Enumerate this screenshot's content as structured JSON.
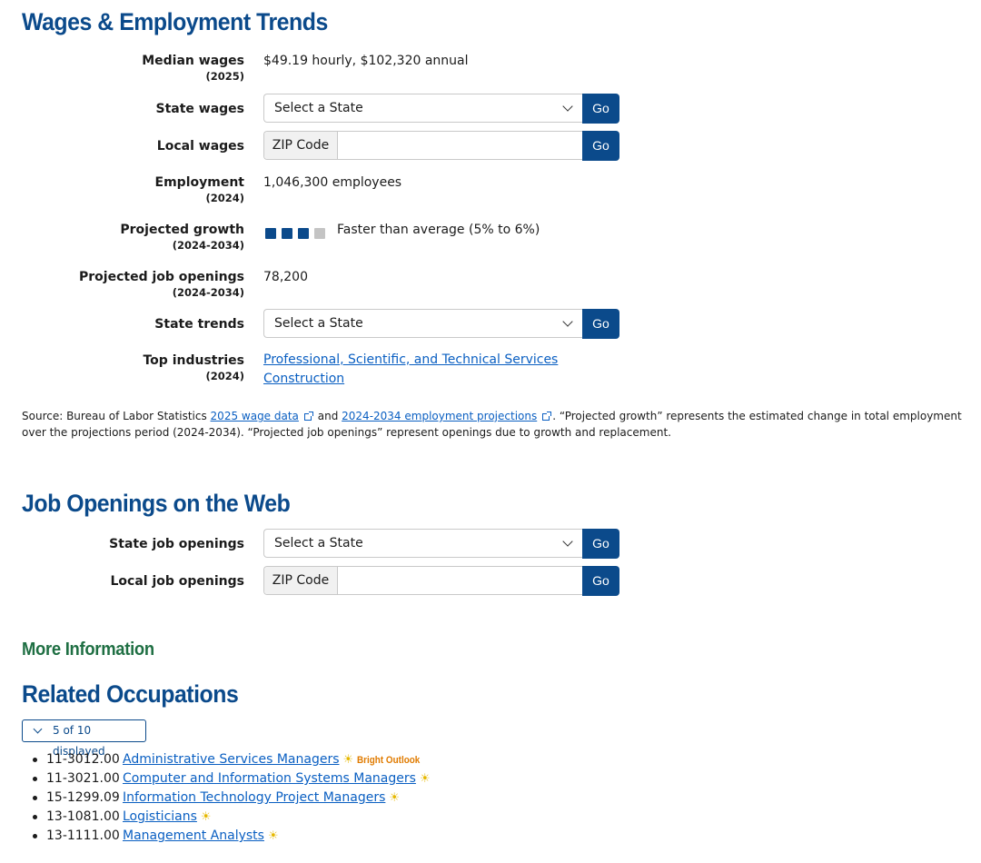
{
  "wages_section": {
    "heading": "Wages & Employment Trends",
    "median_wages": {
      "label": "Median wages",
      "sub": "(2025)",
      "value": "$49.19 hourly, $102,320 annual"
    },
    "state_wages": {
      "label": "State wages",
      "select_value": "Select a State",
      "go": "Go"
    },
    "local_wages": {
      "label": "Local wages",
      "addon": "ZIP Code",
      "input_value": "",
      "go": "Go"
    },
    "employment": {
      "label": "Employment",
      "sub": "(2024)",
      "value": "1,046,300 employees"
    },
    "projected_growth": {
      "label": "Projected growth",
      "sub": "(2024-2034)",
      "filled_squares": 3,
      "total_squares": 4,
      "value": "Faster than average (5% to 6%)"
    },
    "projected_openings": {
      "label": "Projected job openings",
      "sub": "(2024-2034)",
      "value": "78,200"
    },
    "state_trends": {
      "label": "State trends",
      "select_value": "Select a State",
      "go": "Go"
    },
    "top_industries": {
      "label": "Top industries",
      "sub": "(2024)",
      "items": [
        "Professional, Scientific, and Technical Services",
        "Construction"
      ]
    },
    "source": {
      "prefix": "Source: Bureau of Labor Statistics",
      "link1": "2025 wage data",
      "middle": "and",
      "link2": "2024-2034 employment projections",
      "suffix": ". “Projected growth” represents the estimated change in total employment over the projections period (2024-2034). “Projected job openings” represent openings due to growth and replacement."
    }
  },
  "openings_section": {
    "heading": "Job Openings on the Web",
    "state_openings": {
      "label": "State job openings",
      "select_value": "Select a State",
      "go": "Go"
    },
    "local_openings": {
      "label": "Local job openings",
      "addon": "ZIP Code",
      "input_value": "",
      "go": "Go"
    }
  },
  "more_info": {
    "heading": "More Information"
  },
  "related": {
    "heading": "Related Occupations",
    "toggle_label": "5 of 10 displayed",
    "bright_outlook_label": "Bright Outlook",
    "items": [
      {
        "code": "11-3012.00",
        "title": "Administrative Services Managers"
      },
      {
        "code": "11-3021.00",
        "title": "Computer and Information Systems Managers"
      },
      {
        "code": "15-1299.09",
        "title": "Information Technology Project Managers"
      },
      {
        "code": "13-1081.00",
        "title": "Logisticians"
      },
      {
        "code": "13-1111.00",
        "title": "Management Analysts"
      }
    ]
  },
  "icons": {
    "bright_outlook": "sun-icon",
    "external_link": "external-link-icon",
    "dropdown": "chevron-down-icon"
  },
  "colors": {
    "heading_blue": "#0b4a8b",
    "green_heading": "#1f6f43",
    "link": "#0a5fc2",
    "bright_outlook": "#e07b00",
    "sun": "#e6b800",
    "growth_on": "#0b4a8b",
    "growth_off": "#c4c4c4"
  }
}
